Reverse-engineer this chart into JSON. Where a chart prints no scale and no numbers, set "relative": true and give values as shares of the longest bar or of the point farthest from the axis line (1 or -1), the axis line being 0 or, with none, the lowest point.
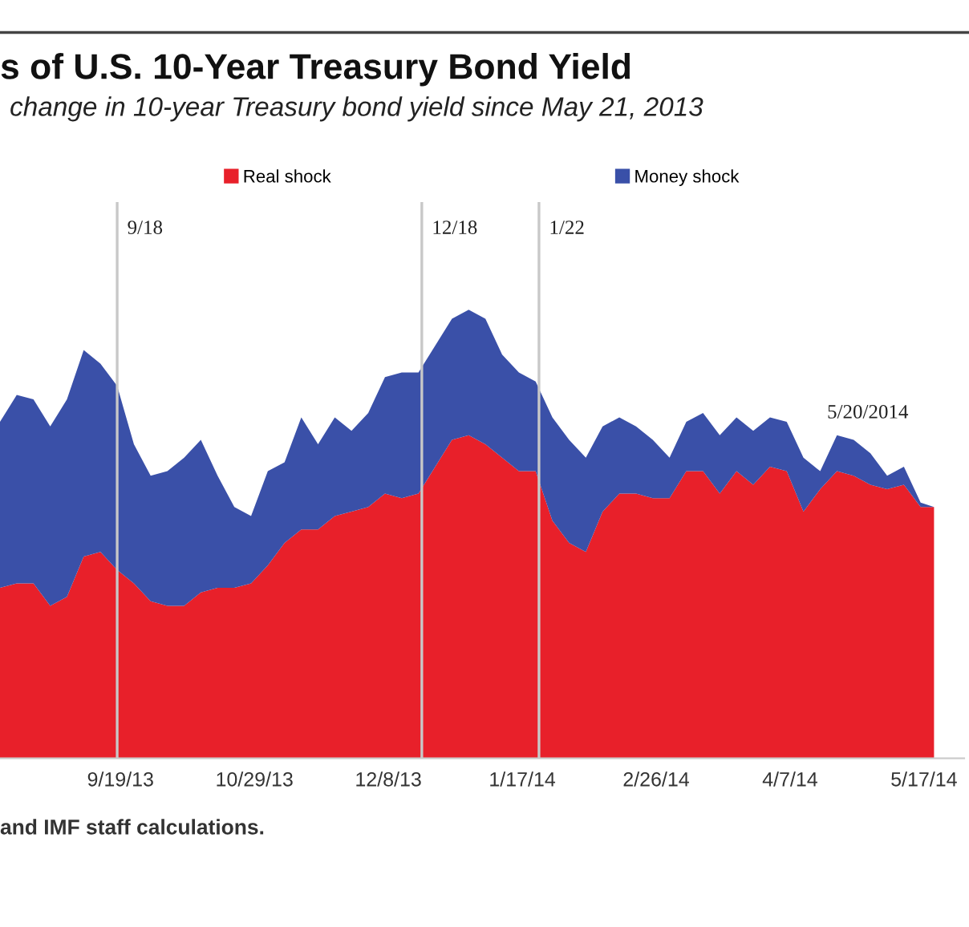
{
  "chart_data": {
    "type": "area",
    "stacked": true,
    "relative": true,
    "title": "s of U.S. 10-Year Treasury Bond Yield",
    "subtitle": "change in 10-year Treasury bond yield since May 21, 2013",
    "x": [
      "2013-08-14",
      "2013-08-19",
      "2013-08-24",
      "2013-08-29",
      "2013-09-03",
      "2013-09-08",
      "2013-09-13",
      "2013-09-18",
      "2013-09-23",
      "2013-09-28",
      "2013-10-03",
      "2013-10-08",
      "2013-10-13",
      "2013-10-18",
      "2013-10-23",
      "2013-10-28",
      "2013-11-02",
      "2013-11-07",
      "2013-11-12",
      "2013-11-17",
      "2013-11-22",
      "2013-11-27",
      "2013-12-02",
      "2013-12-07",
      "2013-12-12",
      "2013-12-17",
      "2013-12-22",
      "2013-12-27",
      "2014-01-01",
      "2014-01-06",
      "2014-01-11",
      "2014-01-16",
      "2014-01-21",
      "2014-01-26",
      "2014-01-31",
      "2014-02-05",
      "2014-02-10",
      "2014-02-15",
      "2014-02-20",
      "2014-02-25",
      "2014-03-02",
      "2014-03-07",
      "2014-03-12",
      "2014-03-17",
      "2014-03-22",
      "2014-03-27",
      "2014-04-01",
      "2014-04-06",
      "2014-04-11",
      "2014-04-16",
      "2014-04-21",
      "2014-04-26",
      "2014-05-01",
      "2014-05-06",
      "2014-05-11",
      "2014-05-16",
      "2014-05-20"
    ],
    "series": [
      {
        "name": "Real shock",
        "color": "#e8202a",
        "values": [
          0.38,
          0.39,
          0.39,
          0.34,
          0.36,
          0.45,
          0.46,
          0.42,
          0.39,
          0.35,
          0.34,
          0.34,
          0.37,
          0.38,
          0.38,
          0.39,
          0.43,
          0.48,
          0.51,
          0.51,
          0.54,
          0.55,
          0.56,
          0.59,
          0.58,
          0.59,
          0.65,
          0.71,
          0.72,
          0.7,
          0.67,
          0.64,
          0.64,
          0.53,
          0.48,
          0.46,
          0.55,
          0.59,
          0.59,
          0.58,
          0.58,
          0.64,
          0.64,
          0.59,
          0.64,
          0.61,
          0.65,
          0.64,
          0.55,
          0.6,
          0.64,
          0.63,
          0.61,
          0.6,
          0.61,
          0.56,
          0.56
        ]
      },
      {
        "name": "Money shock",
        "color": "#3a50a8",
        "values": [
          0.37,
          0.42,
          0.41,
          0.4,
          0.44,
          0.46,
          0.42,
          0.41,
          0.31,
          0.28,
          0.3,
          0.33,
          0.34,
          0.25,
          0.18,
          0.15,
          0.21,
          0.18,
          0.25,
          0.19,
          0.22,
          0.18,
          0.21,
          0.26,
          0.28,
          0.27,
          0.27,
          0.27,
          0.28,
          0.28,
          0.23,
          0.22,
          0.2,
          0.23,
          0.23,
          0.21,
          0.19,
          0.17,
          0.15,
          0.13,
          0.09,
          0.11,
          0.13,
          0.13,
          0.12,
          0.12,
          0.11,
          0.11,
          0.12,
          0.04,
          0.08,
          0.08,
          0.07,
          0.03,
          0.04,
          0.01,
          0
        ]
      }
    ],
    "xlim": [
      "2013-08-14",
      "2014-05-29"
    ],
    "xticks": [
      {
        "value": "2013-09-19",
        "label": "9/19/13"
      },
      {
        "value": "2013-10-29",
        "label": "10/29/13"
      },
      {
        "value": "2013-12-08",
        "label": "12/8/13"
      },
      {
        "value": "2014-01-17",
        "label": "1/17/14"
      },
      {
        "value": "2014-02-26",
        "label": "2/26/14"
      },
      {
        "value": "2014-04-07",
        "label": "4/7/14"
      },
      {
        "value": "2014-05-17",
        "label": "5/17/14"
      }
    ],
    "ref_lines": [
      {
        "axis": "x",
        "value": "2013-09-18",
        "label": "9/18",
        "color": "#c8c8c8"
      },
      {
        "axis": "x",
        "value": "2013-12-18",
        "label": "12/18",
        "color": "#c8c8c8"
      },
      {
        "axis": "x",
        "value": "2014-01-22",
        "label": "1/22",
        "color": "#c8c8c8"
      }
    ],
    "annotations": [
      "5/20/2014",
      "and IMF staff calculations."
    ],
    "legend": "top",
    "grid": false,
    "tick_labels": "x"
  }
}
